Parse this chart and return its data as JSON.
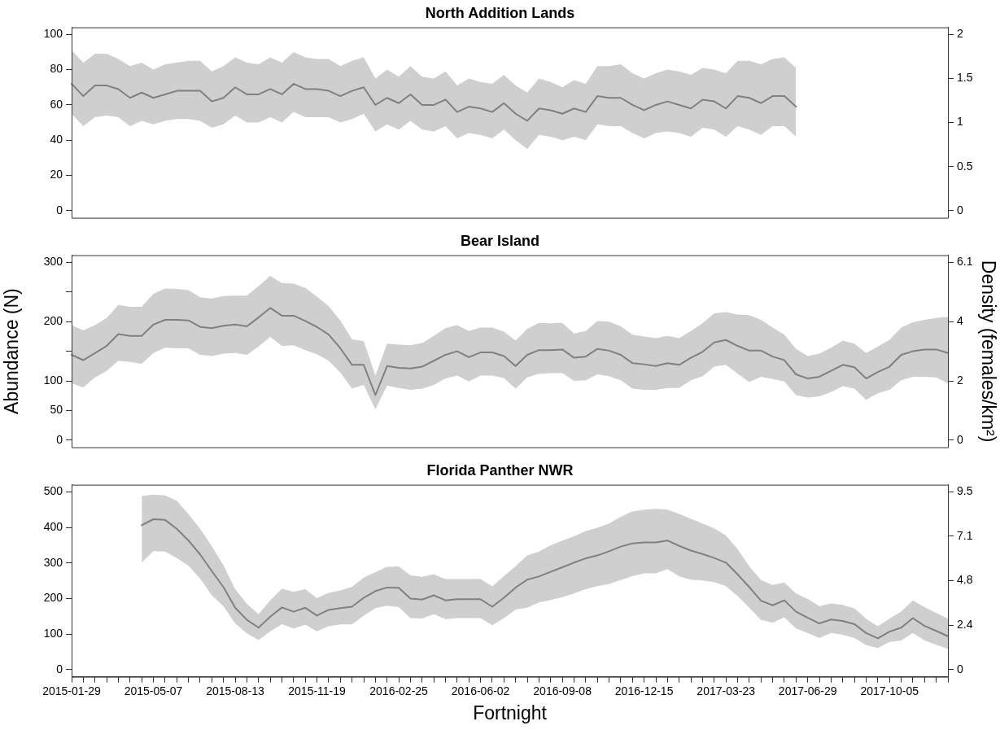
{
  "chart_data": [
    {
      "type": "line",
      "title": "North Addition Lands",
      "tick_labels": "y",
      "categories": [
        "2015-01-29",
        null,
        null,
        null,
        null,
        null,
        null,
        "2015-05-07",
        null,
        null,
        null,
        null,
        null,
        null,
        "2015-08-13",
        null,
        null,
        null,
        null,
        null,
        null,
        "2015-11-19",
        null,
        null,
        null,
        null,
        null,
        null,
        "2016-02-25",
        null,
        null,
        null,
        null,
        null,
        null,
        "2016-06-02",
        null,
        null,
        null,
        null,
        null,
        null,
        "2016-09-08",
        null,
        null,
        null,
        null,
        null,
        null,
        "2016-12-15",
        null,
        null,
        null,
        null,
        null,
        null,
        "2017-03-23",
        null,
        null,
        null,
        null,
        null,
        null,
        "2017-06-29",
        null,
        null,
        null,
        null,
        null,
        null,
        "2017-10-05",
        null,
        null,
        null,
        null,
        null
      ],
      "series": [
        {
          "color": "#808080",
          "values": [
            72,
            65,
            71,
            71,
            69,
            64,
            67,
            64,
            66,
            68,
            68,
            68,
            62,
            64,
            70,
            66,
            66,
            69,
            66,
            72,
            69,
            69,
            68,
            65,
            68,
            70,
            60,
            64,
            61,
            66,
            60,
            60,
            63,
            56,
            59,
            58,
            56,
            61,
            55,
            51,
            58,
            57,
            55,
            58,
            56,
            65,
            64,
            64,
            60,
            57,
            60,
            62,
            60,
            58,
            63,
            62,
            58,
            65,
            64,
            61,
            65,
            65,
            59,
            null,
            null,
            null,
            null,
            null,
            null,
            null,
            null,
            null,
            null,
            null,
            null,
            null
          ],
          "upper": [
            91,
            84,
            89,
            89,
            86,
            82,
            84,
            80,
            83,
            84,
            85,
            85,
            79,
            82,
            87,
            84,
            83,
            87,
            84,
            90,
            87,
            86,
            86,
            82,
            85,
            87,
            75,
            80,
            76,
            82,
            76,
            75,
            79,
            71,
            75,
            73,
            72,
            77,
            71,
            67,
            75,
            73,
            70,
            74,
            72,
            82,
            82,
            83,
            78,
            75,
            78,
            80,
            79,
            77,
            81,
            80,
            78,
            85,
            85,
            83,
            86,
            87,
            81,
            null,
            null,
            null,
            null,
            null,
            null,
            null,
            null,
            null,
            null,
            null,
            null,
            null
          ],
          "lower": [
            55,
            48,
            53,
            54,
            53,
            48,
            51,
            49,
            51,
            52,
            52,
            51,
            47,
            49,
            54,
            50,
            50,
            53,
            50,
            56,
            53,
            53,
            53,
            50,
            52,
            55,
            45,
            49,
            46,
            51,
            46,
            45,
            48,
            41,
            44,
            43,
            41,
            46,
            40,
            35,
            43,
            42,
            40,
            42,
            40,
            49,
            48,
            48,
            44,
            41,
            44,
            45,
            44,
            42,
            47,
            46,
            42,
            48,
            46,
            43,
            48,
            48,
            42,
            null,
            null,
            null,
            null,
            null,
            null,
            null,
            null,
            null,
            null,
            null,
            null,
            null
          ]
        }
      ],
      "ylim": [
        -4,
        104
      ],
      "yticks": [
        0,
        20,
        40,
        60,
        80,
        100
      ],
      "y2lim": [
        -0.08,
        2.08
      ],
      "y2ticks": [
        0,
        0.5,
        1,
        1.5,
        2
      ]
    },
    {
      "type": "line",
      "title": "Bear Island",
      "tick_labels": "y",
      "ylabel": "Abundance (N)",
      "y2label": "Density (females/km²)",
      "categories": [
        "2015-01-29",
        null,
        null,
        null,
        null,
        null,
        null,
        "2015-05-07",
        null,
        null,
        null,
        null,
        null,
        null,
        "2015-08-13",
        null,
        null,
        null,
        null,
        null,
        null,
        "2015-11-19",
        null,
        null,
        null,
        null,
        null,
        null,
        "2016-02-25",
        null,
        null,
        null,
        null,
        null,
        null,
        "2016-06-02",
        null,
        null,
        null,
        null,
        null,
        null,
        "2016-09-08",
        null,
        null,
        null,
        null,
        null,
        null,
        "2016-12-15",
        null,
        null,
        null,
        null,
        null,
        null,
        "2017-03-23",
        null,
        null,
        null,
        null,
        null,
        null,
        "2017-06-29",
        null,
        null,
        null,
        null,
        null,
        null,
        "2017-10-05",
        null,
        null,
        null,
        null,
        null
      ],
      "series": [
        {
          "color": "#808080",
          "values": [
            144,
            135,
            147,
            159,
            179,
            176,
            176,
            195,
            203,
            203,
            202,
            191,
            189,
            193,
            195,
            192,
            207,
            223,
            210,
            210,
            201,
            191,
            178,
            155,
            127,
            127,
            76,
            125,
            122,
            121,
            124,
            134,
            144,
            150,
            140,
            148,
            148,
            142,
            125,
            144,
            152,
            152,
            153,
            139,
            141,
            154,
            151,
            144,
            130,
            128,
            125,
            130,
            127,
            139,
            149,
            165,
            169,
            159,
            151,
            151,
            141,
            135,
            111,
            104,
            107,
            117,
            127,
            123,
            104,
            115,
            124,
            144,
            150,
            153,
            153,
            147
          ],
          "upper": [
            194,
            185,
            194,
            206,
            228,
            225,
            225,
            247,
            256,
            255,
            253,
            241,
            239,
            243,
            244,
            244,
            260,
            277,
            265,
            264,
            257,
            242,
            226,
            202,
            170,
            167,
            109,
            163,
            161,
            160,
            164,
            176,
            189,
            194,
            184,
            190,
            190,
            183,
            168,
            188,
            198,
            197,
            198,
            180,
            184,
            201,
            200,
            192,
            178,
            175,
            172,
            176,
            172,
            184,
            197,
            214,
            216,
            212,
            211,
            203,
            190,
            178,
            154,
            142,
            146,
            156,
            168,
            163,
            147,
            158,
            169,
            190,
            199,
            203,
            206,
            208
          ],
          "lower": [
            96,
            89,
            106,
            117,
            134,
            132,
            129,
            147,
            156,
            155,
            155,
            144,
            142,
            146,
            147,
            144,
            158,
            174,
            159,
            160,
            152,
            145,
            134,
            114,
            87,
            93,
            52,
            92,
            88,
            85,
            87,
            93,
            104,
            109,
            99,
            109,
            109,
            105,
            87,
            106,
            112,
            113,
            113,
            100,
            101,
            111,
            108,
            101,
            87,
            85,
            85,
            88,
            88,
            101,
            108,
            124,
            127,
            112,
            98,
            107,
            103,
            99,
            76,
            72,
            74,
            81,
            91,
            87,
            68,
            79,
            85,
            101,
            107,
            107,
            106,
            96
          ]
        }
      ],
      "ylim": [
        -12,
        312
      ],
      "yticks": [
        0,
        50,
        100,
        {
          "value": 150,
          "label": null
        },
        200,
        {
          "value": 250,
          "label": null
        },
        300
      ],
      "y2lim": [
        -0.24,
        6.34
      ],
      "y2ticks": [
        0,
        {
          "value": 2.03,
          "label": "2"
        },
        {
          "value": 4.07,
          "label": "4"
        },
        6.1
      ]
    },
    {
      "type": "line",
      "title": "Florida Panther NWR",
      "xlabel": "Fortnight",
      "categories": [
        "2015-01-29",
        null,
        null,
        null,
        null,
        null,
        null,
        "2015-05-07",
        null,
        null,
        null,
        null,
        null,
        null,
        "2015-08-13",
        null,
        null,
        null,
        null,
        null,
        null,
        "2015-11-19",
        null,
        null,
        null,
        null,
        null,
        null,
        "2016-02-25",
        null,
        null,
        null,
        null,
        null,
        null,
        "2016-06-02",
        null,
        null,
        null,
        null,
        null,
        null,
        "2016-09-08",
        null,
        null,
        null,
        null,
        null,
        null,
        "2016-12-15",
        null,
        null,
        null,
        null,
        null,
        null,
        "2017-03-23",
        null,
        null,
        null,
        null,
        null,
        null,
        "2017-06-29",
        null,
        null,
        null,
        null,
        null,
        null,
        "2017-10-05",
        null,
        null,
        null,
        null,
        null
      ],
      "series": [
        {
          "color": "#808080",
          "values": [
            null,
            null,
            null,
            null,
            null,
            null,
            406,
            423,
            421,
            396,
            363,
            324,
            277,
            232,
            174,
            140,
            118,
            149,
            175,
            163,
            174,
            152,
            168,
            173,
            177,
            202,
            221,
            231,
            230,
            200,
            197,
            209,
            195,
            198,
            198,
            198,
            177,
            202,
            231,
            253,
            262,
            275,
            288,
            301,
            313,
            321,
            333,
            346,
            355,
            358,
            358,
            363,
            348,
            335,
            325,
            314,
            301,
            268,
            232,
            194,
            181,
            195,
            163,
            146,
            130,
            141,
            137,
            128,
            103,
            88,
            107,
            118,
            145,
            123,
            109,
            94
          ],
          "upper": [
            null,
            null,
            null,
            null,
            null,
            null,
            488,
            492,
            490,
            475,
            437,
            396,
            347,
            293,
            226,
            185,
            156,
            195,
            228,
            219,
            226,
            201,
            216,
            223,
            233,
            259,
            274,
            289,
            290,
            265,
            261,
            268,
            255,
            255,
            255,
            255,
            234,
            263,
            291,
            321,
            332,
            350,
            363,
            375,
            390,
            399,
            411,
            430,
            445,
            450,
            452,
            450,
            438,
            424,
            411,
            397,
            377,
            339,
            290,
            252,
            238,
            245,
            214,
            199,
            179,
            186,
            182,
            172,
            143,
            122,
            143,
            163,
            195,
            176,
            159,
            143
          ],
          "lower": [
            null,
            null,
            null,
            null,
            null,
            null,
            301,
            333,
            332,
            314,
            292,
            256,
            209,
            178,
            130,
            102,
            83,
            108,
            128,
            116,
            126,
            108,
            122,
            127,
            127,
            152,
            173,
            180,
            176,
            145,
            144,
            156,
            142,
            145,
            145,
            145,
            125,
            145,
            169,
            174,
            189,
            196,
            204,
            214,
            226,
            235,
            241,
            252,
            263,
            271,
            271,
            283,
            262,
            253,
            251,
            246,
            235,
            207,
            174,
            140,
            132,
            147,
            116,
            103,
            89,
            103,
            98,
            89,
            69,
            61,
            78,
            82,
            103,
            82,
            70,
            58
          ]
        }
      ],
      "ylim": [
        -20,
        520
      ],
      "yticks": [
        0,
        100,
        200,
        300,
        400,
        500
      ],
      "y2lim": [
        -0.38,
        9.88
      ],
      "y2ticks": [
        0,
        {
          "value": 2.375,
          "label": "2.4"
        },
        {
          "value": 4.75,
          "label": "4.8"
        },
        {
          "value": 7.125,
          "label": "7.1"
        },
        9.5
      ]
    }
  ]
}
